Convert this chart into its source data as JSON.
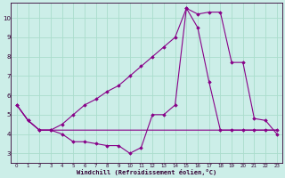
{
  "background_color": "#cceee8",
  "grid_color": "#aaddcc",
  "line_color": "#880088",
  "xlabel": "Windchill (Refroidissement éolien,°C)",
  "xlim": [
    -0.5,
    23.5
  ],
  "ylim": [
    2.5,
    10.8
  ],
  "yticks": [
    3,
    4,
    5,
    6,
    7,
    8,
    9,
    10
  ],
  "xticks": [
    0,
    1,
    2,
    3,
    4,
    5,
    6,
    7,
    8,
    9,
    10,
    11,
    12,
    13,
    14,
    15,
    16,
    17,
    18,
    19,
    20,
    21,
    22,
    23
  ],
  "line1_x": [
    0,
    1,
    2,
    3,
    4,
    5,
    6,
    7,
    8,
    9,
    10,
    11,
    12,
    13,
    14,
    15,
    16,
    17,
    18,
    19,
    20,
    21,
    22,
    23
  ],
  "line1_y": [
    5.5,
    4.7,
    4.2,
    4.2,
    4.0,
    3.6,
    3.6,
    3.5,
    3.4,
    3.4,
    3.0,
    3.3,
    5.0,
    5.0,
    5.5,
    10.5,
    9.5,
    6.7,
    4.2,
    4.2,
    4.2,
    4.2,
    4.2,
    4.2
  ],
  "line2_x": [
    0,
    1,
    2,
    3,
    4,
    5,
    6,
    7,
    8,
    9,
    10,
    11,
    12,
    13,
    14,
    15,
    16,
    17,
    18,
    19,
    20,
    21,
    22,
    23
  ],
  "line2_y": [
    5.5,
    4.7,
    4.2,
    4.2,
    4.2,
    4.2,
    4.2,
    4.2,
    4.2,
    4.2,
    4.2,
    4.2,
    4.2,
    4.2,
    4.2,
    4.2,
    4.2,
    4.2,
    4.2,
    4.2,
    4.2,
    4.2,
    4.2,
    4.2
  ],
  "line3_x": [
    0,
    1,
    2,
    3,
    4,
    5,
    6,
    7,
    8,
    9,
    10,
    11,
    12,
    13,
    14,
    15,
    16,
    17,
    18,
    19,
    20,
    21,
    22,
    23
  ],
  "line3_y": [
    5.5,
    4.7,
    4.2,
    4.2,
    4.5,
    5.0,
    5.5,
    5.8,
    6.2,
    6.5,
    7.0,
    7.5,
    8.0,
    8.5,
    9.0,
    10.5,
    10.2,
    10.3,
    10.3,
    7.7,
    7.7,
    4.8,
    4.7,
    4.0
  ]
}
